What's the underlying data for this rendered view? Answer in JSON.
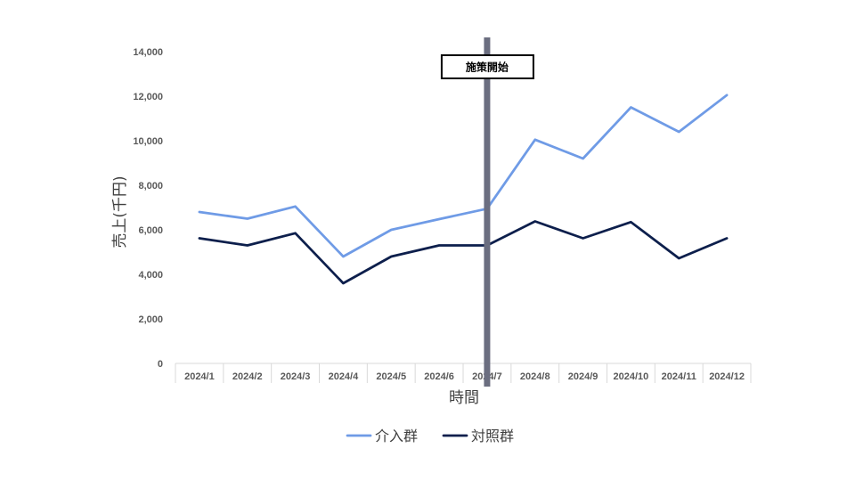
{
  "chart_data": {
    "type": "line",
    "categories": [
      "2024/1",
      "2024/2",
      "2024/3",
      "2024/4",
      "2024/5",
      "2024/6",
      "2024/7",
      "2024/8",
      "2024/9",
      "2024/10",
      "2024/11",
      "2024/12"
    ],
    "series": [
      {
        "name": "介入群",
        "color": "#6f9be6",
        "values": [
          6800,
          6500,
          7050,
          4800,
          6000,
          6480,
          6950,
          10050,
          9200,
          11500,
          10400,
          12050
        ]
      },
      {
        "name": "対照群",
        "color": "#0d1f4c",
        "values": [
          5620,
          5300,
          5850,
          3600,
          4800,
          5300,
          5300,
          6380,
          5620,
          6350,
          4720,
          5620
        ]
      }
    ],
    "ylabel": "売上(千円)",
    "xlabel": "時間",
    "ylim": [
      0,
      14000
    ],
    "yticks": [
      "0",
      "2,000",
      "4,000",
      "6,000",
      "8,000",
      "10,000",
      "12,000",
      "14,000"
    ],
    "grid": false,
    "legend_position": "bottom",
    "annotation": {
      "label": "施策開始",
      "at_category": "2024/7",
      "line_color": "#6b6e80"
    }
  }
}
